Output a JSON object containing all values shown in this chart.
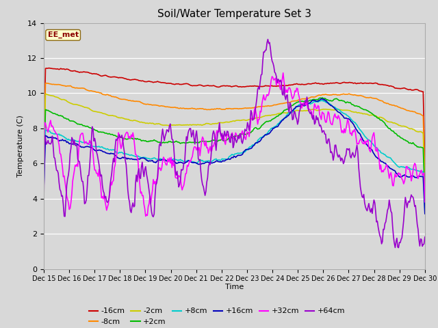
{
  "title": "Soil/Water Temperature Set 3",
  "xlabel": "Time",
  "ylabel": "Temperature (C)",
  "ylim": [
    0,
    14
  ],
  "xlim": [
    0,
    15
  ],
  "x_tick_labels": [
    "Dec 15",
    "Dec 16",
    "Dec 17",
    "Dec 18",
    "Dec 19",
    "Dec 20",
    "Dec 21",
    "Dec 22",
    "Dec 23",
    "Dec 24",
    "Dec 25",
    "Dec 26",
    "Dec 27",
    "Dec 28",
    "Dec 29",
    "Dec 30"
  ],
  "background_color": "#d8d8d8",
  "plot_bg_color": "#d8d8d8",
  "annotation_text": "EE_met",
  "annotation_bg": "#ffffcc",
  "annotation_border": "#8b0000",
  "series": {
    "-16cm": {
      "color": "#cc0000",
      "lw": 1.2
    },
    "-8cm": {
      "color": "#ff8800",
      "lw": 1.2
    },
    "-2cm": {
      "color": "#cccc00",
      "lw": 1.2
    },
    "+2cm": {
      "color": "#00bb00",
      "lw": 1.2
    },
    "+8cm": {
      "color": "#00cccc",
      "lw": 1.2
    },
    "+16cm": {
      "color": "#0000bb",
      "lw": 1.2
    },
    "+32cm": {
      "color": "#ff00ff",
      "lw": 1.2
    },
    "+64cm": {
      "color": "#9900cc",
      "lw": 1.2
    }
  },
  "legend_order": [
    "-16cm",
    "-8cm",
    "-2cm",
    "+2cm",
    "+8cm",
    "+16cm",
    "+32cm",
    "+64cm"
  ]
}
